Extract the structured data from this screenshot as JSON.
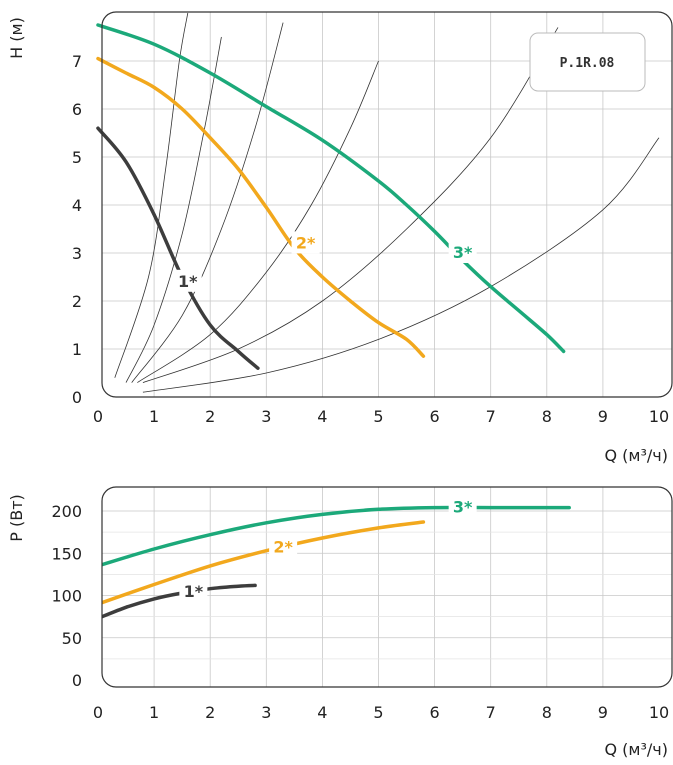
{
  "chart_data": [
    {
      "type": "line",
      "model": "P.1R.08",
      "ylabel": "H (м)",
      "xlabel": "Q (м³/ч)",
      "xlim": [
        0,
        10
      ],
      "ylim": [
        0,
        8
      ],
      "xticks": [
        "0",
        "1",
        "2",
        "3",
        "4",
        "5",
        "6",
        "7",
        "8",
        "9",
        "10"
      ],
      "yticks": [
        "0",
        "1",
        "2",
        "3",
        "4",
        "5",
        "6",
        "7"
      ],
      "grid": true,
      "series": [
        {
          "name": "1*",
          "color": "#3d3d3d",
          "x": [
            0,
            0.5,
            1.0,
            1.5,
            2.0,
            2.5,
            2.85
          ],
          "y": [
            5.6,
            4.9,
            3.8,
            2.5,
            1.5,
            0.95,
            0.6
          ]
        },
        {
          "name": "2*",
          "color": "#f2a81d",
          "x": [
            0,
            0.5,
            1.0,
            1.5,
            2.0,
            2.5,
            3.0,
            3.5,
            4.0,
            4.5,
            5.0,
            5.5,
            5.8
          ],
          "y": [
            7.05,
            6.75,
            6.45,
            6.0,
            5.4,
            4.75,
            3.95,
            3.1,
            2.5,
            2.0,
            1.55,
            1.2,
            0.85
          ]
        },
        {
          "name": "3*",
          "color": "#1ca97a",
          "x": [
            0,
            1,
            2,
            3,
            4,
            5,
            5.5,
            6,
            6.5,
            7,
            7.5,
            8,
            8.3
          ],
          "y": [
            7.75,
            7.35,
            6.75,
            6.05,
            5.35,
            4.5,
            4.0,
            3.45,
            2.85,
            2.3,
            1.8,
            1.3,
            0.95
          ]
        }
      ],
      "system_curves": [
        {
          "x": [
            0.3,
            0.9,
            1.2,
            1.45,
            1.6
          ],
          "y": [
            0.4,
            2.5,
            4.7,
            7.0,
            8.0
          ]
        },
        {
          "x": [
            0.5,
            1.0,
            1.5,
            1.9,
            2.2
          ],
          "y": [
            0.3,
            1.5,
            3.4,
            5.6,
            7.5
          ]
        },
        {
          "x": [
            0.6,
            1.5,
            2.2,
            2.8,
            3.3
          ],
          "y": [
            0.3,
            1.7,
            3.5,
            5.6,
            7.8
          ]
        },
        {
          "x": [
            0.7,
            2.0,
            3.0,
            3.8,
            4.5,
            5.0
          ],
          "y": [
            0.3,
            1.3,
            2.6,
            4.0,
            5.6,
            7.0
          ]
        },
        {
          "x": [
            0.8,
            2.5,
            4.0,
            5.5,
            7.0,
            8.2
          ],
          "y": [
            0.3,
            1.0,
            2.0,
            3.5,
            5.4,
            7.7
          ]
        },
        {
          "x": [
            0.8,
            3.0,
            5.0,
            7.0,
            9.0,
            10.0
          ],
          "y": [
            0.1,
            0.5,
            1.2,
            2.3,
            3.9,
            5.4
          ]
        }
      ]
    },
    {
      "type": "line",
      "ylabel": "P (Вт)",
      "xlabel": "Q (м³/ч)",
      "xlim": [
        0,
        10
      ],
      "ylim": [
        0,
        225
      ],
      "xticks": [
        "0",
        "1",
        "2",
        "3",
        "4",
        "5",
        "6",
        "7",
        "8",
        "9",
        "10"
      ],
      "yticks": [
        "0",
        "50",
        "100",
        "150",
        "200"
      ],
      "grid": true,
      "series": [
        {
          "name": "1*",
          "color": "#3d3d3d",
          "x": [
            0,
            0.5,
            1.0,
            1.5,
            2.0,
            2.5,
            2.8
          ],
          "y": [
            73,
            86,
            96,
            103,
            108,
            111,
            112
          ]
        },
        {
          "name": "2*",
          "color": "#f2a81d",
          "x": [
            0,
            1,
            2,
            3,
            4,
            5,
            5.8
          ],
          "y": [
            90,
            113,
            135,
            153,
            168,
            180,
            187
          ]
        },
        {
          "name": "3*",
          "color": "#1ca97a",
          "x": [
            0,
            1,
            2,
            3,
            4,
            5,
            6,
            7,
            8,
            8.4
          ],
          "y": [
            135,
            155,
            172,
            186,
            196,
            202,
            204,
            204,
            204,
            204
          ]
        }
      ]
    }
  ]
}
